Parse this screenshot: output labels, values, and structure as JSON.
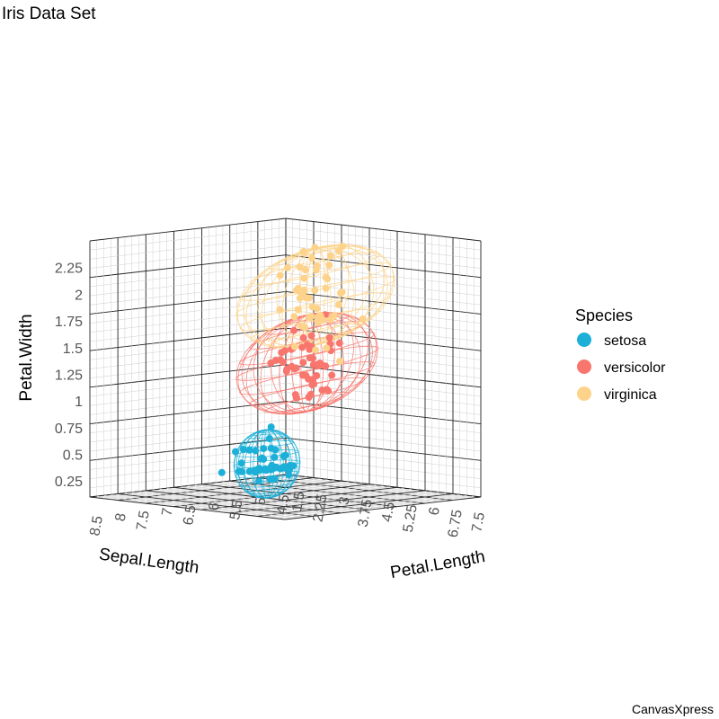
{
  "chart_data": {
    "type": "scatter",
    "subtype": "3d",
    "title": "Iris Data Set",
    "credit": "CanvasXpress",
    "x_axis": {
      "label": "Sepal.Length",
      "ticks": [
        "4.5",
        "5",
        "5.5",
        "6",
        "6.5",
        "7",
        "7.5",
        "8",
        "8.5"
      ],
      "range": [
        4.3,
        8.5
      ]
    },
    "y_axis": {
      "label": "Petal.Length",
      "ticks": [
        "1.5",
        "2.25",
        "3",
        "3.75",
        "4.5",
        "5.25",
        "6",
        "6.75",
        "7.5"
      ],
      "range": [
        1,
        7.5
      ]
    },
    "z_axis": {
      "label": "Petal.Width",
      "ticks": [
        "0.25",
        "0.5",
        "0.75",
        "1",
        "1.25",
        "1.5",
        "1.75",
        "2",
        "2.25"
      ],
      "range": [
        0.1,
        2.5
      ]
    },
    "legend": {
      "title": "Species",
      "position": "right"
    },
    "ellipses": true,
    "grid": true,
    "series": [
      {
        "name": "setosa",
        "color": "#1CB0D8",
        "points": [
          [
            5.1,
            1.4,
            0.2
          ],
          [
            4.9,
            1.4,
            0.2
          ],
          [
            4.7,
            1.3,
            0.2
          ],
          [
            4.6,
            1.5,
            0.2
          ],
          [
            5.0,
            1.4,
            0.2
          ],
          [
            5.4,
            1.7,
            0.4
          ],
          [
            4.6,
            1.4,
            0.3
          ],
          [
            5.0,
            1.5,
            0.2
          ],
          [
            4.4,
            1.4,
            0.2
          ],
          [
            4.9,
            1.5,
            0.1
          ],
          [
            5.4,
            1.5,
            0.2
          ],
          [
            4.8,
            1.6,
            0.2
          ],
          [
            4.8,
            1.4,
            0.1
          ],
          [
            4.3,
            1.1,
            0.1
          ],
          [
            5.8,
            1.2,
            0.2
          ],
          [
            5.7,
            1.5,
            0.4
          ],
          [
            5.4,
            1.3,
            0.4
          ],
          [
            5.1,
            1.4,
            0.3
          ],
          [
            5.7,
            1.7,
            0.3
          ],
          [
            5.1,
            1.5,
            0.3
          ],
          [
            5.4,
            1.7,
            0.2
          ],
          [
            5.1,
            1.5,
            0.4
          ],
          [
            4.6,
            1.0,
            0.2
          ],
          [
            5.1,
            1.7,
            0.5
          ],
          [
            4.8,
            1.9,
            0.2
          ],
          [
            5.0,
            1.6,
            0.2
          ],
          [
            5.0,
            1.6,
            0.4
          ],
          [
            5.2,
            1.5,
            0.2
          ],
          [
            5.2,
            1.4,
            0.2
          ],
          [
            4.7,
            1.6,
            0.2
          ],
          [
            4.8,
            1.6,
            0.2
          ],
          [
            5.4,
            1.5,
            0.4
          ],
          [
            5.2,
            1.5,
            0.1
          ],
          [
            5.5,
            1.4,
            0.2
          ],
          [
            4.9,
            1.5,
            0.2
          ],
          [
            5.0,
            1.2,
            0.2
          ],
          [
            5.5,
            1.3,
            0.2
          ],
          [
            4.9,
            1.4,
            0.1
          ],
          [
            4.4,
            1.3,
            0.2
          ],
          [
            5.1,
            1.5,
            0.2
          ],
          [
            5.0,
            1.3,
            0.3
          ],
          [
            4.5,
            1.3,
            0.3
          ],
          [
            4.4,
            1.3,
            0.2
          ],
          [
            5.0,
            1.6,
            0.6
          ],
          [
            5.1,
            1.9,
            0.4
          ],
          [
            4.8,
            1.4,
            0.3
          ],
          [
            5.1,
            1.6,
            0.2
          ],
          [
            4.6,
            1.4,
            0.2
          ],
          [
            5.3,
            1.5,
            0.2
          ],
          [
            5.0,
            1.4,
            0.2
          ]
        ]
      },
      {
        "name": "versicolor",
        "color": "#F8766D",
        "points": [
          [
            7.0,
            4.7,
            1.4
          ],
          [
            6.4,
            4.5,
            1.5
          ],
          [
            6.9,
            4.9,
            1.5
          ],
          [
            5.5,
            4.0,
            1.3
          ],
          [
            6.5,
            4.6,
            1.5
          ],
          [
            5.7,
            4.5,
            1.3
          ],
          [
            6.3,
            4.7,
            1.6
          ],
          [
            4.9,
            3.3,
            1.0
          ],
          [
            6.6,
            4.6,
            1.3
          ],
          [
            5.2,
            3.9,
            1.4
          ],
          [
            5.0,
            3.5,
            1.0
          ],
          [
            5.9,
            4.2,
            1.5
          ],
          [
            6.0,
            4.0,
            1.0
          ],
          [
            6.1,
            4.7,
            1.4
          ],
          [
            5.6,
            3.6,
            1.3
          ],
          [
            6.7,
            4.4,
            1.4
          ],
          [
            5.6,
            4.5,
            1.5
          ],
          [
            5.8,
            4.1,
            1.0
          ],
          [
            6.2,
            4.5,
            1.5
          ],
          [
            5.6,
            3.9,
            1.1
          ],
          [
            5.9,
            4.8,
            1.8
          ],
          [
            6.1,
            4.0,
            1.3
          ],
          [
            6.3,
            4.9,
            1.5
          ],
          [
            6.1,
            4.7,
            1.2
          ],
          [
            6.4,
            4.3,
            1.3
          ],
          [
            6.6,
            4.4,
            1.4
          ],
          [
            6.8,
            4.8,
            1.4
          ],
          [
            6.7,
            5.0,
            1.7
          ],
          [
            6.0,
            4.5,
            1.5
          ],
          [
            5.7,
            3.5,
            1.0
          ],
          [
            5.5,
            3.8,
            1.1
          ],
          [
            5.5,
            3.7,
            1.0
          ],
          [
            5.8,
            3.9,
            1.2
          ],
          [
            6.0,
            5.1,
            1.6
          ],
          [
            5.4,
            4.5,
            1.5
          ],
          [
            6.0,
            4.5,
            1.6
          ],
          [
            6.7,
            4.7,
            1.5
          ],
          [
            6.3,
            4.4,
            1.3
          ],
          [
            5.6,
            4.1,
            1.3
          ],
          [
            5.5,
            4.0,
            1.3
          ],
          [
            5.5,
            4.4,
            1.2
          ],
          [
            6.1,
            4.6,
            1.4
          ],
          [
            5.8,
            4.0,
            1.2
          ],
          [
            5.0,
            3.3,
            1.0
          ],
          [
            5.6,
            4.2,
            1.3
          ],
          [
            5.7,
            4.2,
            1.2
          ],
          [
            5.7,
            4.2,
            1.3
          ],
          [
            6.2,
            4.3,
            1.3
          ],
          [
            5.1,
            3.0,
            1.1
          ],
          [
            5.7,
            4.1,
            1.3
          ]
        ]
      },
      {
        "name": "virginica",
        "color": "#FDD38B",
        "points": [
          [
            6.3,
            6.0,
            2.5
          ],
          [
            5.8,
            5.1,
            1.9
          ],
          [
            7.1,
            5.9,
            2.1
          ],
          [
            6.3,
            5.6,
            1.8
          ],
          [
            6.5,
            5.8,
            2.2
          ],
          [
            7.6,
            6.6,
            2.1
          ],
          [
            4.9,
            4.5,
            1.7
          ],
          [
            7.3,
            6.3,
            1.8
          ],
          [
            6.7,
            5.8,
            1.8
          ],
          [
            7.2,
            6.1,
            2.5
          ],
          [
            6.5,
            5.1,
            2.0
          ],
          [
            6.4,
            5.3,
            1.9
          ],
          [
            6.8,
            5.5,
            2.1
          ],
          [
            5.7,
            5.0,
            2.0
          ],
          [
            5.8,
            5.1,
            2.4
          ],
          [
            6.4,
            5.3,
            2.3
          ],
          [
            6.5,
            5.5,
            1.8
          ],
          [
            7.7,
            6.7,
            2.2
          ],
          [
            7.7,
            6.9,
            2.3
          ],
          [
            6.0,
            5.0,
            1.5
          ],
          [
            6.9,
            5.7,
            2.3
          ],
          [
            5.6,
            4.9,
            2.0
          ],
          [
            7.7,
            6.7,
            2.0
          ],
          [
            6.3,
            4.9,
            1.8
          ],
          [
            6.7,
            5.7,
            2.1
          ],
          [
            7.2,
            6.0,
            1.8
          ],
          [
            6.2,
            4.8,
            1.8
          ],
          [
            6.1,
            4.9,
            1.8
          ],
          [
            6.4,
            5.6,
            2.1
          ],
          [
            7.2,
            5.8,
            1.6
          ],
          [
            7.4,
            6.1,
            1.9
          ],
          [
            7.9,
            6.4,
            2.0
          ],
          [
            6.4,
            5.6,
            2.2
          ],
          [
            6.3,
            5.1,
            1.5
          ],
          [
            6.1,
            5.6,
            1.4
          ],
          [
            7.7,
            6.1,
            2.3
          ],
          [
            6.3,
            5.6,
            2.4
          ],
          [
            6.4,
            5.5,
            1.8
          ],
          [
            6.0,
            4.8,
            1.8
          ],
          [
            6.9,
            5.4,
            2.1
          ],
          [
            6.7,
            5.6,
            2.4
          ],
          [
            6.9,
            5.1,
            2.3
          ],
          [
            5.8,
            5.1,
            1.9
          ],
          [
            6.8,
            5.9,
            2.3
          ],
          [
            6.7,
            5.7,
            2.5
          ],
          [
            6.7,
            5.2,
            2.3
          ],
          [
            6.3,
            5.0,
            1.9
          ],
          [
            6.5,
            5.2,
            2.0
          ],
          [
            6.2,
            5.4,
            2.3
          ],
          [
            5.9,
            5.1,
            1.8
          ]
        ]
      }
    ]
  }
}
